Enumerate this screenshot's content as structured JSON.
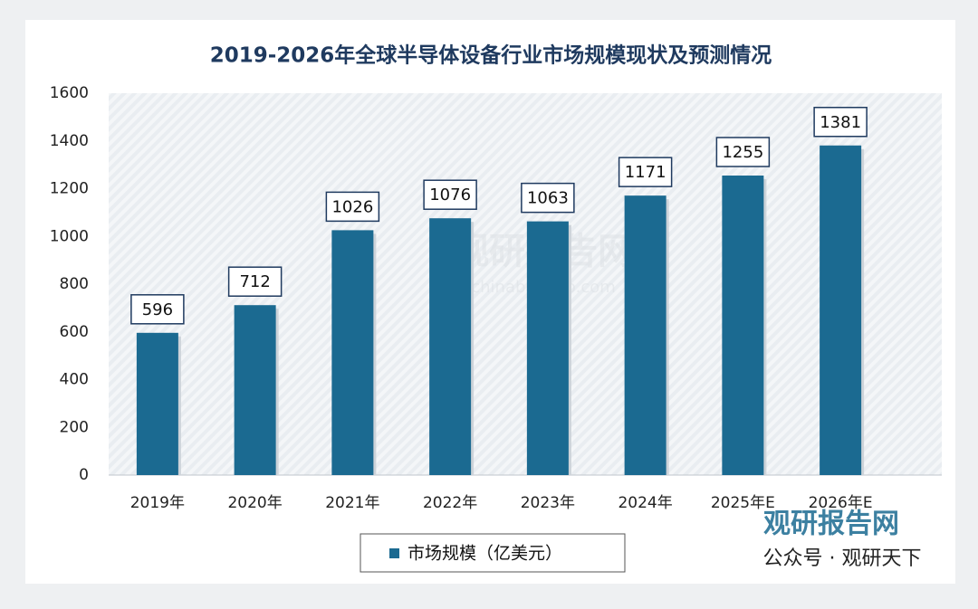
{
  "chart_data": {
    "type": "bar",
    "title": "2019-2026年全球半导体设备行业市场规模现状及预测情况",
    "categories": [
      "2019年",
      "2020年",
      "2021年",
      "2022年",
      "2023年",
      "2024年",
      "2025年E",
      "2026年E"
    ],
    "series": [
      {
        "name": "市场规模（亿美元）",
        "color": "#1b6a91",
        "values": [
          596,
          712,
          1026,
          1076,
          1063,
          1171,
          1255,
          1381
        ]
      }
    ],
    "ylim": [
      0,
      1600
    ],
    "yticks": [
      0,
      200,
      400,
      600,
      800,
      1000,
      1200,
      1400,
      1600
    ],
    "grid": false,
    "data_labels": true
  },
  "watermarks": [
    "观研报告网",
    "chinabaogao.com",
    "公众号 · 观研天下"
  ]
}
